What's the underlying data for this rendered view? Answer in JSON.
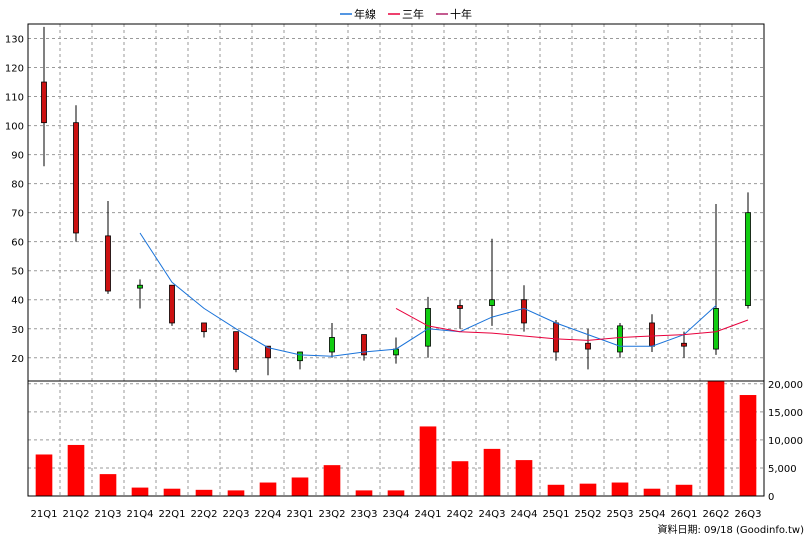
{
  "chart_data": {
    "type": "candlestick",
    "legend": [
      {
        "name": "年線",
        "color": "#1a73d9"
      },
      {
        "name": "三年",
        "color": "#e8003c"
      },
      {
        "name": "十年",
        "color": "#b0246a"
      }
    ],
    "categories": [
      "21Q1",
      "21Q2",
      "21Q3",
      "21Q4",
      "22Q1",
      "22Q2",
      "22Q3",
      "22Q4",
      "23Q1",
      "23Q2",
      "23Q3",
      "23Q4",
      "24Q1",
      "24Q2",
      "24Q3",
      "24Q4",
      "25Q1",
      "25Q2",
      "25Q3",
      "25Q4",
      "26Q1",
      "26Q2",
      "26Q3"
    ],
    "price_axis": {
      "ticks": [
        20,
        30,
        40,
        50,
        60,
        70,
        80,
        90,
        100,
        110,
        120,
        130
      ],
      "ylim": [
        12,
        135
      ]
    },
    "volume_axis": {
      "ticks": [
        0,
        5000,
        10000,
        15000,
        20000
      ],
      "tick_labels": [
        "0",
        "5,000",
        "10,000",
        "15,000",
        "20,000"
      ],
      "ylim": [
        0,
        20500
      ]
    },
    "candles": [
      {
        "open": 101,
        "high": 134,
        "low": 86,
        "close": 115
      },
      {
        "open": 63,
        "high": 107,
        "low": 60,
        "close": 101
      },
      {
        "open": 43,
        "high": 74,
        "low": 42,
        "close": 62
      },
      {
        "open": 45,
        "high": 47,
        "low": 37,
        "close": 44
      },
      {
        "open": 32,
        "high": 45,
        "low": 31,
        "close": 45
      },
      {
        "open": 29,
        "high": 32,
        "low": 27,
        "close": 32
      },
      {
        "open": 16,
        "high": 29,
        "low": 15,
        "close": 29
      },
      {
        "open": 20,
        "high": 24,
        "low": 14,
        "close": 24
      },
      {
        "open": 22,
        "high": 22,
        "low": 16,
        "close": 19
      },
      {
        "open": 27,
        "high": 32,
        "low": 20,
        "close": 22
      },
      {
        "open": 21,
        "high": 28,
        "low": 19,
        "close": 28
      },
      {
        "open": 23,
        "high": 27,
        "low": 18,
        "close": 21
      },
      {
        "open": 37,
        "high": 41,
        "low": 20,
        "close": 24
      },
      {
        "open": 37,
        "high": 40,
        "low": 30,
        "close": 38
      },
      {
        "open": 40,
        "high": 61,
        "low": 31,
        "close": 38
      },
      {
        "open": 32,
        "high": 45,
        "low": 29,
        "close": 40
      },
      {
        "open": 22,
        "high": 33,
        "low": 19,
        "close": 32
      },
      {
        "open": 23,
        "high": 30,
        "low": 16,
        "close": 25
      },
      {
        "open": 31,
        "high": 32,
        "low": 20,
        "close": 22
      },
      {
        "open": 24,
        "high": 35,
        "low": 22,
        "close": 32
      },
      {
        "open": 24,
        "high": 29,
        "low": 20,
        "close": 25
      },
      {
        "open": 37,
        "high": 73,
        "low": 21,
        "close": 23
      },
      {
        "open": 70,
        "high": 77,
        "low": 37,
        "close": 38
      }
    ],
    "lines": [
      {
        "name": "年線",
        "color": "#1a73d9",
        "start_index": 3,
        "values": [
          63,
          46,
          37,
          30,
          23.5,
          21,
          20.5,
          22,
          23,
          30,
          29,
          34,
          37,
          32,
          28,
          24,
          24,
          28,
          38
        ]
      },
      {
        "name": "三年",
        "color": "#e8003c",
        "start_index": 11,
        "values": [
          37,
          31,
          29,
          28.5,
          27.5,
          26.5,
          26,
          27,
          27.5,
          28,
          29,
          33
        ]
      },
      {
        "name": "十年",
        "color": "#b0246a",
        "start_index": 11,
        "values": [
          null,
          null,
          null,
          null,
          null,
          null,
          null,
          null,
          null,
          null,
          null,
          null
        ]
      }
    ],
    "volume": [
      7400,
      9100,
      3900,
      1500,
      1300,
      1100,
      1000,
      2400,
      3300,
      5500,
      1000,
      1000,
      12400,
      6200,
      8400,
      6400,
      2000,
      2200,
      2400,
      1300,
      2000,
      20500,
      18000
    ],
    "up_color": "#cc1111",
    "down_color": "#11cc11",
    "volume_color": "#ff0000"
  },
  "footer": {
    "source_text": "資料日期: 09/18  (Goodinfo.tw)"
  }
}
